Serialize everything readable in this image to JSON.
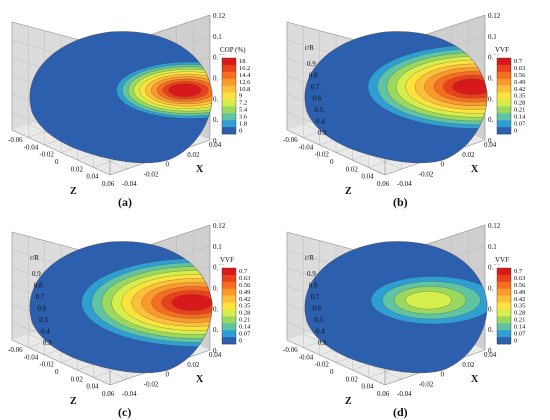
{
  "chart_data": [
    {
      "type": "heatmap",
      "panel_label": "(a)",
      "zlabel": "Z",
      "xlabel": "X",
      "ylabel": "Y",
      "z_ticks": [
        "-0.06",
        "-0.04",
        "-0.02",
        "0",
        "0.02",
        "0.04",
        "0.06"
      ],
      "x_ticks": [
        "0.04",
        "0.02",
        "0",
        "-0.02",
        "-0.04"
      ],
      "y_ticks": [
        "0.12",
        "0.1",
        "0.08",
        "0.06",
        "0.04",
        "0.02",
        "0"
      ],
      "rr_ticks": [],
      "colorbar": {
        "title": "COP (%)",
        "levels": [
          "18",
          "16.2",
          "14.4",
          "12.6",
          "10.8",
          "9",
          "7.2",
          "5.4",
          "3.6",
          "1.8",
          "0"
        ],
        "colors": [
          "#d7191c",
          "#e8411c",
          "#f46d20",
          "#fb9a2c",
          "#fdc03a",
          "#fee33f",
          "#d5ee4b",
          "#9bd860",
          "#5fc3a4",
          "#2f9fd3",
          "#2c5fad"
        ]
      },
      "hot_spot": {
        "level_index": 0,
        "z_frac": 0.88,
        "y_frac": 0.52,
        "spread": 0.45
      }
    },
    {
      "type": "heatmap",
      "panel_label": "(b)",
      "zlabel": "Z",
      "xlabel": "X",
      "ylabel": "Y",
      "z_ticks": [
        "-0.06",
        "-0.04",
        "-0.02",
        "0",
        "0.02",
        "0.04",
        "0.06"
      ],
      "x_ticks": [
        "0.04",
        "0.02",
        "0",
        "-0.02",
        "-0.04"
      ],
      "y_ticks": [
        "0.12",
        "0.1",
        "0.08",
        "0.06",
        "0.04",
        "0.02",
        "0"
      ],
      "rr_ticks": [
        "0.9",
        "0.8",
        "0.7",
        "0.6",
        "0.5",
        "0.4",
        "0.3"
      ],
      "rr_label": "r/R",
      "colorbar": {
        "title": "VVF",
        "levels": [
          "0.7",
          "0.63",
          "0.56",
          "0.49",
          "0.42",
          "0.35",
          "0.28",
          "0.21",
          "0.14",
          "0.07",
          "0"
        ],
        "colors": [
          "#d7191c",
          "#e8411c",
          "#f46d20",
          "#fb9a2c",
          "#fdc03a",
          "#fee33f",
          "#d5ee4b",
          "#9bd860",
          "#5fc3a4",
          "#2f9fd3",
          "#2c5fad"
        ]
      },
      "hot_spot": {
        "level_index": 0,
        "z_frac": 0.95,
        "y_frac": 0.55,
        "spread": 0.75
      }
    },
    {
      "type": "heatmap",
      "panel_label": "(c)",
      "zlabel": "Z",
      "xlabel": "X",
      "ylabel": "Y",
      "z_ticks": [
        "-0.06",
        "-0.04",
        "-0.02",
        "0",
        "0.02",
        "0.04",
        "0.06"
      ],
      "x_ticks": [
        "0.04",
        "0.02",
        "0",
        "-0.02",
        "-0.04"
      ],
      "y_ticks": [
        "0.12",
        "0.1",
        "0.08",
        "0.06",
        "0.04",
        "0.02",
        "0"
      ],
      "rr_ticks": [
        "0.9",
        "0.8",
        "0.7",
        "0.6",
        "0.5",
        "0.4",
        "0.3"
      ],
      "rr_label": "r/R",
      "colorbar": {
        "title": "VVF",
        "levels": [
          "0.7",
          "0.63",
          "0.56",
          "0.49",
          "0.42",
          "0.35",
          "0.28",
          "0.21",
          "0.14",
          "0.07",
          "0"
        ],
        "colors": [
          "#d7191c",
          "#e8411c",
          "#f46d20",
          "#fb9a2c",
          "#fdc03a",
          "#fee33f",
          "#d5ee4b",
          "#9bd860",
          "#5fc3a4",
          "#2f9fd3",
          "#2c5fad"
        ]
      },
      "hot_spot": {
        "level_index": 0,
        "z_frac": 0.92,
        "y_frac": 0.5,
        "spread": 0.8
      }
    },
    {
      "type": "heatmap",
      "panel_label": "(d)",
      "zlabel": "Z",
      "xlabel": "X",
      "ylabel": "Y",
      "z_ticks": [
        "-0.06",
        "-0.04",
        "-0.02",
        "0",
        "0.02",
        "0.04",
        "0.06"
      ],
      "x_ticks": [
        "0.04",
        "0.02",
        "0",
        "-0.02",
        "-0.04"
      ],
      "y_ticks": [
        "0.12",
        "0.1",
        "0.08",
        "0.06",
        "0.04",
        "0.02",
        "0"
      ],
      "rr_ticks": [
        "0.9",
        "0.8",
        "0.7",
        "0.6",
        "0.5",
        "0.4",
        "0.3"
      ],
      "rr_label": "r/R",
      "colorbar": {
        "title": "VVF",
        "levels": [
          "0.7",
          "0.63",
          "0.56",
          "0.49",
          "0.42",
          "0.35",
          "0.28",
          "0.21",
          "0.14",
          "0.07",
          "0"
        ],
        "colors": [
          "#d7191c",
          "#e8411c",
          "#f46d20",
          "#fb9a2c",
          "#fdc03a",
          "#fee33f",
          "#d5ee4b",
          "#9bd860",
          "#5fc3a4",
          "#2f9fd3",
          "#2c5fad"
        ]
      },
      "hot_spot": {
        "level_index": 6,
        "z_frac": 0.7,
        "y_frac": 0.52,
        "spread": 0.35
      }
    }
  ]
}
